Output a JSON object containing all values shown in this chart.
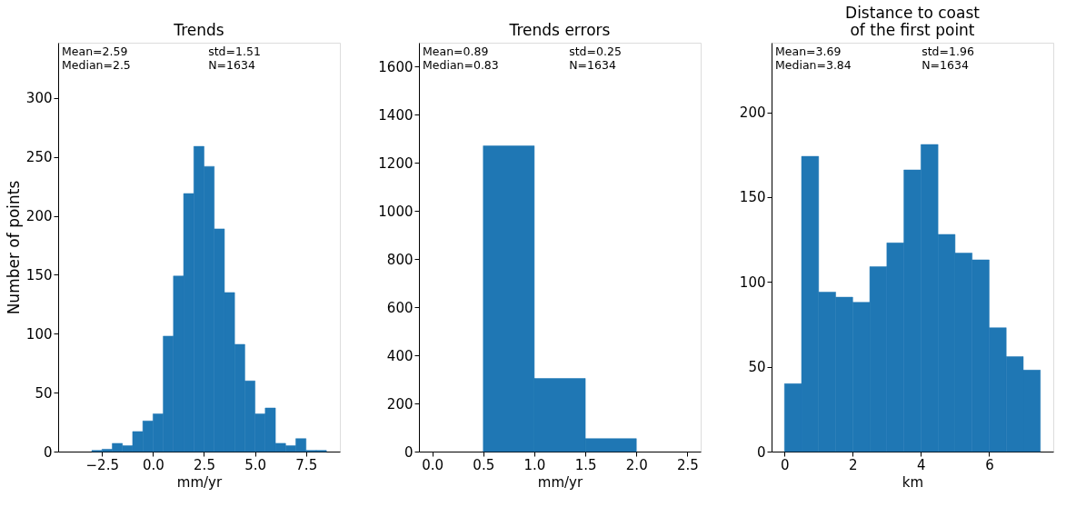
{
  "chart_data": [
    {
      "type": "histogram",
      "title": "Trends",
      "xlabel": "mm/yr",
      "ylabel": "Number of points",
      "color": "#1f77b4",
      "bins": [
        -3.0,
        -2.5,
        -2.0,
        -1.5,
        -1.0,
        -0.5,
        0.0,
        0.5,
        1.0,
        1.5,
        2.0,
        2.5,
        3.0,
        3.5,
        4.0,
        4.5,
        5.0,
        5.5,
        6.0,
        6.5,
        7.0,
        7.5,
        8.0,
        8.5
      ],
      "values": [
        1,
        2,
        7,
        5,
        17,
        26,
        32,
        98,
        149,
        219,
        259,
        242,
        189,
        135,
        91,
        60,
        32,
        37,
        7,
        5,
        11,
        1,
        1
      ],
      "xlim": [
        -4.65,
        9.16
      ],
      "xticks": [
        {
          "value": -2.5,
          "label": "−2.5"
        },
        {
          "value": 0,
          "label": "0.0"
        },
        2.5,
        {
          "value": 5,
          "label": "5.0"
        },
        7.5
      ],
      "ylim": [
        0,
        347
      ],
      "yticks": [
        0,
        50,
        100,
        150,
        200,
        250,
        300
      ],
      "grid": false,
      "annotations": [
        "Mean=2.59",
        "Median=2.5",
        "std=1.51",
        "N=1634"
      ]
    },
    {
      "type": "histogram",
      "title": "Trends errors",
      "xlabel": "mm/yr",
      "color": "#1f77b4",
      "bins": [
        0.5,
        1.0,
        1.5,
        2.0
      ],
      "values": [
        1271,
        304,
        54
      ],
      "xlim": [
        -0.13,
        2.63
      ],
      "xticks": [
        {
          "value": 0,
          "label": "0.0"
        },
        0.5,
        {
          "value": 1,
          "label": "1.0"
        },
        1.5,
        {
          "value": 2,
          "label": "2.0"
        },
        2.5
      ],
      "ylim": [
        0,
        1700
      ],
      "yticks": [
        0,
        200,
        400,
        600,
        800,
        1000,
        1200,
        1400,
        1600
      ],
      "grid": false,
      "annotations": [
        "Mean=0.89",
        "Median=0.83",
        "std=0.25",
        "N=1634"
      ]
    },
    {
      "type": "histogram",
      "title": "Distance to coast\nof the first point",
      "xlabel": "km",
      "color": "#1f77b4",
      "bins": [
        0,
        0.5,
        1.0,
        1.5,
        2.0,
        2.5,
        3.0,
        3.5,
        4.0,
        4.5,
        5.0,
        5.5,
        6.0,
        6.5,
        7.0,
        7.5
      ],
      "values": [
        40,
        174,
        94,
        91,
        88,
        109,
        123,
        166,
        181,
        128,
        117,
        113,
        73,
        56,
        48
      ],
      "xlim": [
        -0.38,
        7.88
      ],
      "xticks": [
        0,
        2,
        4,
        6
      ],
      "ylim": [
        0,
        241
      ],
      "yticks": [
        0,
        50,
        100,
        150,
        200
      ],
      "grid": false,
      "annotations": [
        "Mean=3.69",
        "Median=3.84",
        "std=1.96",
        "N=1634"
      ]
    }
  ]
}
